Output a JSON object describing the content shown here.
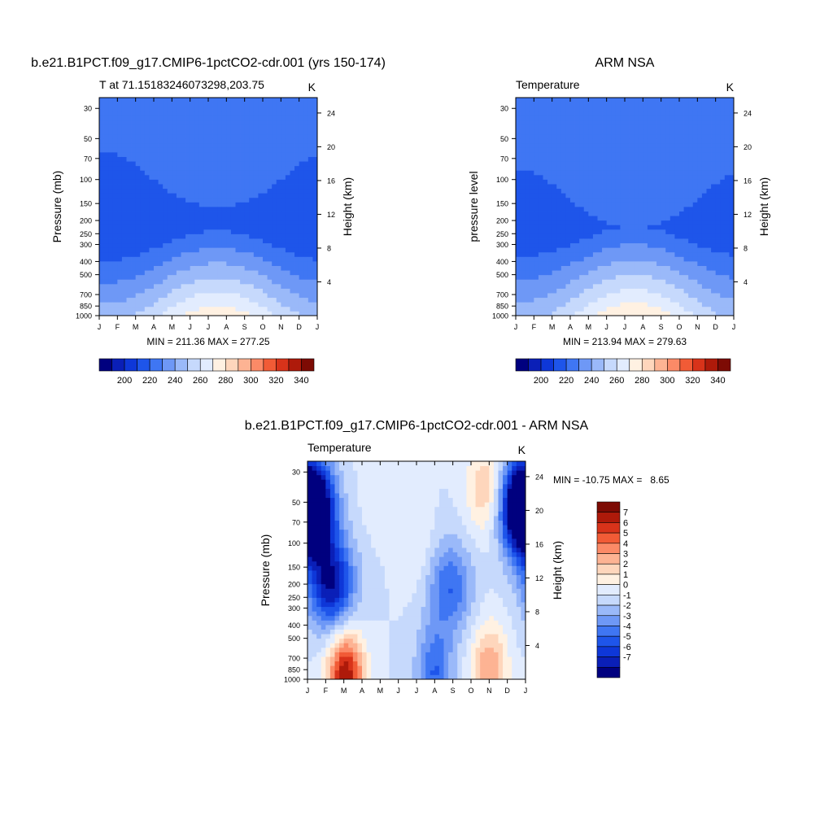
{
  "colors": {
    "scale_abs": [
      "#00007f",
      "#0a1fb7",
      "#0e37d8",
      "#1e55ea",
      "#3f76f3",
      "#6e98f6",
      "#9ab9f9",
      "#c6d9fc",
      "#e2ecfe",
      "#fff1e2",
      "#fed6bc",
      "#fdb393",
      "#fb8a67",
      "#f15b36",
      "#d8331a",
      "#ae1a0a",
      "#7d0b04"
    ],
    "scale_diff": [
      "#00007f",
      "#0a1fb7",
      "#0e37d8",
      "#1e55ea",
      "#3f76f3",
      "#6e98f6",
      "#9ab9f9",
      "#c6d9fc",
      "#e2ecfe",
      "#fff1e2",
      "#fed6bc",
      "#fdb393",
      "#fb8a67",
      "#f15b36",
      "#d8331a",
      "#ae1a0a",
      "#7d0b04"
    ]
  },
  "chart_data": [
    {
      "type": "heatmap",
      "title": "b.e21.B1PCT.f09_g17.CMIP6-1pctCO2-cdr.001 (yrs 150-174)",
      "left_string": "T at 71.15183246073298,203.75",
      "units": "K",
      "ylabel": "Pressure (mb)",
      "ylabel_right": "Height (km)",
      "x": [
        "J",
        "F",
        "M",
        "A",
        "M",
        "J",
        "J",
        "A",
        "S",
        "O",
        "N",
        "D",
        "J"
      ],
      "y_ticks": [
        1000,
        850,
        700,
        500,
        400,
        300,
        250,
        200,
        150,
        100,
        70,
        50,
        30
      ],
      "y_right_ticks": [
        4,
        8,
        12,
        16,
        20,
        24
      ],
      "ylim": [
        1000,
        25
      ],
      "scale": "log-pressure",
      "min_max_text": "MIN = 211.36 MAX = 277.25",
      "min": 211.36,
      "max": 277.25,
      "contour_levels": [
        190,
        200,
        210,
        220,
        230,
        240,
        250,
        260,
        270,
        280,
        290,
        300,
        310,
        320,
        330,
        340
      ],
      "colorbar_labels": [
        "200",
        "220",
        "240",
        "260",
        "280",
        "300",
        "320",
        "340"
      ],
      "colorbar_orientation": "horizontal",
      "palette": "scale_abs",
      "field": {
        "stratosphere": 220,
        "tropopause_min": 214,
        "surface_winter": 246,
        "surface_summer": 277,
        "tropo_pressure_winter": 300,
        "tropo_pressure_summer": 220
      }
    },
    {
      "type": "heatmap",
      "title": "ARM NSA",
      "left_string": "Temperature",
      "units": "K",
      "ylabel": "pressure level",
      "ylabel_right": "Height (km)",
      "x": [
        "J",
        "F",
        "M",
        "A",
        "M",
        "J",
        "J",
        "A",
        "S",
        "O",
        "N",
        "D",
        "J"
      ],
      "y_ticks": [
        1000,
        850,
        700,
        500,
        400,
        300,
        250,
        200,
        150,
        100,
        70,
        50,
        30
      ],
      "y_right_ticks": [
        4,
        8,
        12,
        16,
        20,
        24
      ],
      "ylim": [
        1000,
        25
      ],
      "scale": "log-pressure",
      "min_max_text": "MIN = 213.94 MAX = 279.63",
      "min": 213.94,
      "max": 279.63,
      "contour_levels": [
        190,
        200,
        210,
        220,
        230,
        240,
        250,
        260,
        270,
        280,
        290,
        300,
        310,
        320,
        330,
        340
      ],
      "colorbar_labels": [
        "200",
        "220",
        "240",
        "260",
        "280",
        "300",
        "320",
        "340"
      ],
      "colorbar_orientation": "horizontal",
      "palette": "scale_abs",
      "field": {
        "stratosphere": 221,
        "tropopause_min": 216,
        "surface_winter": 247,
        "surface_summer": 279,
        "tropo_pressure_winter": 300,
        "tropo_pressure_summer": 220
      }
    },
    {
      "type": "heatmap",
      "title": "b.e21.B1PCT.f09_g17.CMIP6-1pctCO2-cdr.001 - ARM NSA",
      "left_string": "Temperature",
      "units": "K",
      "ylabel": "Pressure (mb)",
      "ylabel_right": "Height (km)",
      "x": [
        "J",
        "F",
        "M",
        "A",
        "M",
        "J",
        "J",
        "A",
        "S",
        "O",
        "N",
        "D",
        "J"
      ],
      "y_ticks": [
        1000,
        850,
        700,
        500,
        400,
        300,
        250,
        200,
        150,
        100,
        70,
        50,
        30
      ],
      "y_right_ticks": [
        4,
        8,
        12,
        16,
        20,
        24
      ],
      "ylim": [
        1000,
        25
      ],
      "scale": "log-pressure",
      "min_max_text": "MIN = -10.75 MAX =   8.65",
      "min": -10.75,
      "max": 8.65,
      "contour_levels": [
        -7,
        -6,
        -5,
        -4,
        -3,
        -2,
        -1,
        0,
        1,
        2,
        3,
        4,
        5,
        6,
        7
      ],
      "colorbar_labels": [
        "7",
        "6",
        "5",
        "4",
        "3",
        "2",
        "1",
        "0",
        "-1",
        "-2",
        "-3",
        "-4",
        "-5",
        "-6",
        "-7"
      ],
      "colorbar_orientation": "vertical",
      "palette": "scale_diff",
      "features": [
        {
          "kind": "cold",
          "month": 0.1,
          "pressure": 60,
          "value": -8
        },
        {
          "kind": "cold",
          "month": 1.3,
          "pressure": 200,
          "value": -7
        },
        {
          "kind": "cold",
          "month": 12.0,
          "pressure": 50,
          "value": -7
        },
        {
          "kind": "cold",
          "month": 7.8,
          "pressure": 210,
          "value": -4
        },
        {
          "kind": "cold",
          "month": 7.0,
          "pressure": 900,
          "value": -4
        },
        {
          "kind": "warm",
          "month": 2.1,
          "pressure": 970,
          "value": 8
        },
        {
          "kind": "warm",
          "month": 10.0,
          "pressure": 850,
          "value": 4
        },
        {
          "kind": "warm",
          "month": 9.8,
          "pressure": 40,
          "value": 3
        },
        {
          "kind": "warm",
          "month": 4.0,
          "pressure": 35,
          "value": 1
        },
        {
          "kind": "warm",
          "month": 6.2,
          "pressure": 120,
          "value": 1
        }
      ]
    }
  ]
}
